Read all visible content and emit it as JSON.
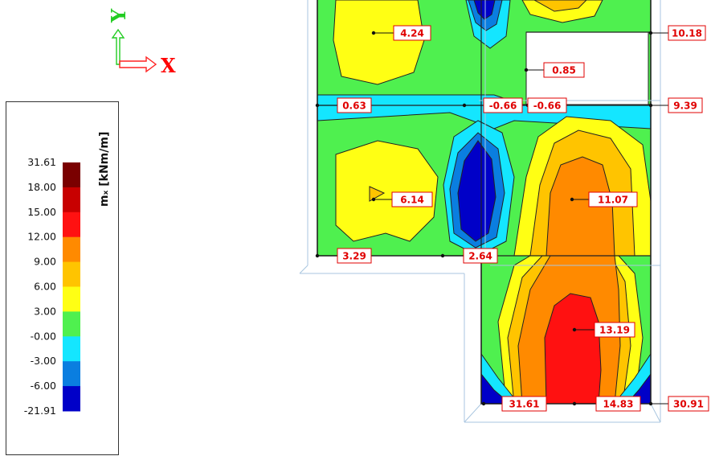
{
  "axes": {
    "x_label": "X",
    "y_label": "Y",
    "x_color": "#ff0000",
    "y_color": "#22cc22"
  },
  "legend": {
    "unit": "mₓ [kNm/m]",
    "ticks": [
      "31.61",
      "18.00",
      "15.00",
      "12.00",
      "9.00",
      "6.00",
      "3.00",
      "-0.00",
      "-3.00",
      "-6.00",
      "-21.91"
    ],
    "colors": [
      "#7a0000",
      "#c80000",
      "#ff1111",
      "#ff8a00",
      "#ffc400",
      "#ffff14",
      "#4ff04f",
      "#14e6ff",
      "#0a7ee0",
      "#0000c8"
    ]
  },
  "value_labels": [
    "4.24",
    "10.18",
    "0.85",
    "0.63",
    "-0.66",
    "-0.66",
    "9.39",
    "6.14",
    "11.07",
    "3.29",
    "2.64",
    "13.19",
    "31.61",
    "14.83",
    "30.91"
  ]
}
